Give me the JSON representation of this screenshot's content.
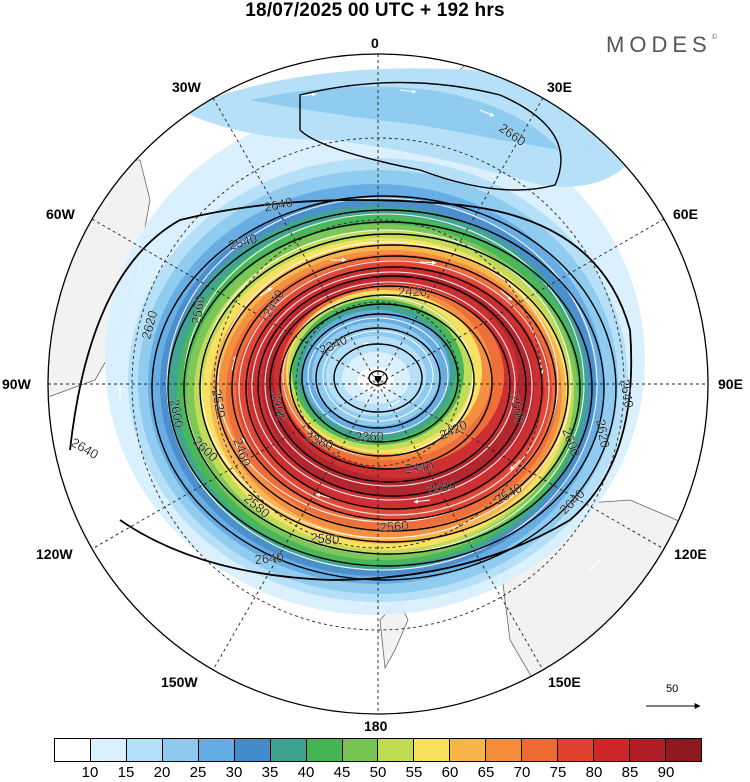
{
  "title": "18/07/2025  00 UTC  + 192 hrs",
  "brand": "MODES",
  "brand_mark": "©",
  "lon_labels": {
    "n0": "0",
    "e30": "30E",
    "e60": "60E",
    "e90": "90E",
    "e120": "120E",
    "e150": "150E",
    "s180": "180",
    "w150": "150W",
    "w120": "120W",
    "w90": "90W",
    "w60": "60W",
    "w30": "30W"
  },
  "contour_labels": {
    "c2660": "2660",
    "c2640a": "2640",
    "c2640b": "2640",
    "c2640c": "2640",
    "c2640d": "2640",
    "c2640e": "2640",
    "c2620a": "2620",
    "c2620b": "2620",
    "c2600a": "2600",
    "c2600b": "2600",
    "c2600c": "2600",
    "c2580a": "2580",
    "c2580b": "2580",
    "c2560a": "2560",
    "c2560b": "2560",
    "c2540a": "2540",
    "c2540b": "2540",
    "c2520a": "2520",
    "c2500a": "2500",
    "c2480a": "2480",
    "c2460a": "2460",
    "c2440a": "2440",
    "c2440b": "2440",
    "c2420a": "2420",
    "c2420b": "2420",
    "c2400a": "2400",
    "c2380a": "2380",
    "c2360a": "2360",
    "c2340a": "2340"
  },
  "colorbar": {
    "colors": [
      "#ffffff",
      "#d9f0fd",
      "#b4dff8",
      "#8ccaf0",
      "#62abe3",
      "#448bcb",
      "#3ba28d",
      "#43b553",
      "#77c551",
      "#bedb52",
      "#f6e05c",
      "#f8b448",
      "#f48c3a",
      "#ef6a32",
      "#e0412e",
      "#cd272a",
      "#b01e25",
      "#8e1a1e"
    ],
    "ticks": [
      "10",
      "15",
      "20",
      "25",
      "30",
      "35",
      "40",
      "45",
      "50",
      "55",
      "60",
      "65",
      "70",
      "75",
      "80",
      "85",
      "90"
    ]
  },
  "reference_vector": "50"
}
